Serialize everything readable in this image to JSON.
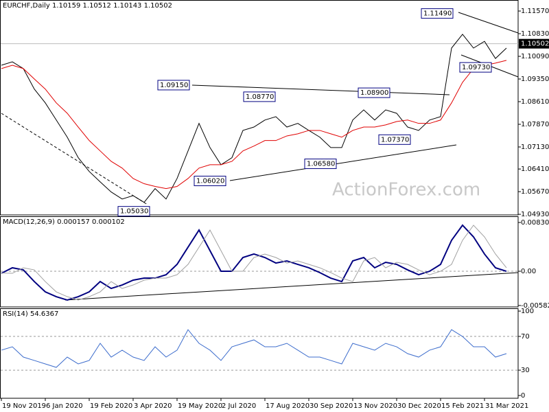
{
  "chart_data": [
    {
      "type": "line",
      "title": "EURCHF,Daily  1.10159 1.10512 1.10143 1.10502",
      "watermark": "ActionForex.com",
      "categories": [
        "19 Nov 2019",
        null,
        null,
        null,
        "6 Jan 2020",
        null,
        null,
        null,
        "19 Feb 2020",
        null,
        null,
        null,
        "3 Apr 2020",
        null,
        null,
        null,
        "19 May 2020",
        null,
        null,
        null,
        "2 Jul 2020",
        null,
        null,
        null,
        "17 Aug 2020",
        null,
        null,
        null,
        "30 Sep 2020",
        null,
        null,
        null,
        "13 Nov 2020",
        null,
        null,
        null,
        "30 Dec 2020",
        null,
        null,
        null,
        "15 Feb 2021",
        null,
        null,
        null,
        "31 Mar 2021",
        null,
        null
      ],
      "series": [
        {
          "color": "#000000",
          "values": [
            1.098,
            1.0991,
            1.0969,
            1.0902,
            1.0857,
            1.0801,
            1.0745,
            1.0678,
            1.0633,
            1.0599,
            1.0566,
            1.0543,
            1.0554,
            1.0532,
            1.0577,
            1.0543,
            1.061,
            1.07,
            1.079,
            1.0711,
            1.0655,
            1.0678,
            1.0767,
            1.0778,
            1.0801,
            1.0812,
            1.0778,
            1.079,
            1.0767,
            1.0745,
            1.0711,
            1.0711,
            1.0801,
            1.0834,
            1.0801,
            1.0834,
            1.0823,
            1.0778,
            1.0767,
            1.0801,
            1.0812,
            1.1036,
            1.1081,
            1.1036,
            1.1058,
            1.1002,
            1.1036
          ]
        },
        {
          "color": "#e00000",
          "values": [
            1.0969,
            1.098,
            1.0969,
            1.0935,
            1.0902,
            1.0857,
            1.0823,
            1.0778,
            1.0734,
            1.07,
            1.0666,
            1.0644,
            1.061,
            1.0593,
            1.0584,
            1.0577,
            1.0584,
            1.061,
            1.0644,
            1.0655,
            1.0655,
            1.0666,
            1.07,
            1.0716,
            1.0734,
            1.0734,
            1.0749,
            1.0756,
            1.0767,
            1.0767,
            1.0756,
            1.0745,
            1.0767,
            1.0778,
            1.0778,
            1.0785,
            1.0796,
            1.0801,
            1.079,
            1.079,
            1.0801,
            1.0857,
            1.0924,
            1.0969,
            1.098,
            1.0987,
            1.0996
          ]
        }
      ],
      "ylim": [
        1.0491,
        1.1193
      ],
      "yticks": [
        {
          "value": 1.1157,
          "label": "1.11570"
        },
        {
          "value": 1.1083,
          "label": "1.10830"
        },
        {
          "value": 1.1009,
          "label": "1.10090"
        },
        {
          "value": 1.0935,
          "label": "1.09350"
        },
        {
          "value": 1.0861,
          "label": "1.08610"
        },
        {
          "value": 1.0787,
          "label": "1.07870"
        },
        {
          "value": 1.0713,
          "label": "1.07130"
        },
        {
          "value": 1.0641,
          "label": "1.06410"
        },
        {
          "value": 1.0567,
          "label": "1.05670"
        },
        {
          "value": 1.0493,
          "label": "1.04930"
        }
      ],
      "last_price": {
        "value": 1.10502,
        "label": "1.10502"
      },
      "annotations": [
        {
          "value": 1.1149,
          "label": "1.11490"
        },
        {
          "value": 1.0973,
          "label": "1.09730"
        },
        {
          "value": 1.0915,
          "label": "1.09150"
        },
        {
          "value": 1.0877,
          "label": "1.08770"
        },
        {
          "value": 1.089,
          "label": "1.08900"
        },
        {
          "value": 1.0737,
          "label": "1.07370"
        },
        {
          "value": 1.0658,
          "label": "1.06580"
        },
        {
          "value": 1.0602,
          "label": "1.06020"
        },
        {
          "value": 1.0503,
          "label": "1.05030"
        }
      ]
    },
    {
      "type": "line",
      "title": "MACD(12,26,9) 0.000157 0.000102",
      "series": [
        {
          "color": "#000080",
          "values": [
            -0.00035,
            0.00059,
            0.00023,
            -0.00176,
            -0.00351,
            -0.00433,
            -0.00491,
            -0.00433,
            -0.00351,
            -0.00176,
            -0.00293,
            -0.00234,
            -0.00152,
            -0.00117,
            -0.00117,
            -0.00059,
            0.00117,
            0.0041,
            0.00702,
            0.00351,
            0,
            0,
            0.00234,
            0.00293,
            0.00234,
            0.0014,
            0.00176,
            0.00117,
            0.00059,
            -0.00023,
            -0.00117,
            -0.00176,
            0.00176,
            0.00234,
            0.00059,
            0.00152,
            0.00117,
            0.00023,
            -0.00059,
            0,
            0.00117,
            0.00527,
            0.00784,
            0.00585,
            0.00293,
            0.00059,
            0
          ]
        },
        {
          "color": "#a0a0a0",
          "values": [
            -0.0003,
            -0.00035,
            0.00059,
            0.00023,
            -0.00176,
            -0.00351,
            -0.00433,
            -0.00491,
            -0.00433,
            -0.00351,
            -0.00176,
            -0.00293,
            -0.00234,
            -0.00152,
            -0.00117,
            -0.00117,
            -0.00059,
            0.00117,
            0.0041,
            0.00702,
            0.00351,
            0,
            0,
            0.00234,
            0.00293,
            0.00234,
            0.0014,
            0.00176,
            0.00117,
            0.00059,
            -0.00023,
            -0.00117,
            -0.00176,
            0.00176,
            0.00234,
            0.00059,
            0.00152,
            0.00117,
            0.00023,
            -0.00059,
            0,
            0.00117,
            0.00527,
            0.00784,
            0.00585,
            0.00293,
            0.00059
          ]
        }
      ],
      "ylim": [
        -0.00608,
        0.00936
      ],
      "yticks": [
        0.008307,
        {
          "value": 0,
          "label": "0.00"
        },
        -0.005828
      ],
      "levels": [
        0
      ]
    },
    {
      "type": "line",
      "title": "RSI(14) 54.6367",
      "series": [
        {
          "color": "#3c6ccc",
          "values": [
            53.7,
            57.7,
            45.5,
            41.5,
            37.4,
            33.3,
            45.5,
            37.4,
            41.5,
            61.8,
            45.5,
            53.7,
            45.5,
            41.5,
            57.7,
            45.5,
            53.7,
            78,
            61.8,
            53.7,
            41.5,
            57.7,
            61.8,
            65.9,
            57.7,
            57.7,
            61.8,
            53.7,
            45.5,
            45.5,
            41.5,
            37.4,
            61.8,
            57.7,
            53.7,
            61.8,
            57.7,
            49.6,
            45.5,
            53.7,
            57.7,
            78,
            69.9,
            57.7,
            57.7,
            45.5,
            49.6
          ]
        }
      ],
      "ylim": [
        -3.3,
        103.3
      ],
      "yticks": [
        100,
        70,
        30,
        0
      ],
      "levels": [
        30,
        70
      ]
    }
  ]
}
